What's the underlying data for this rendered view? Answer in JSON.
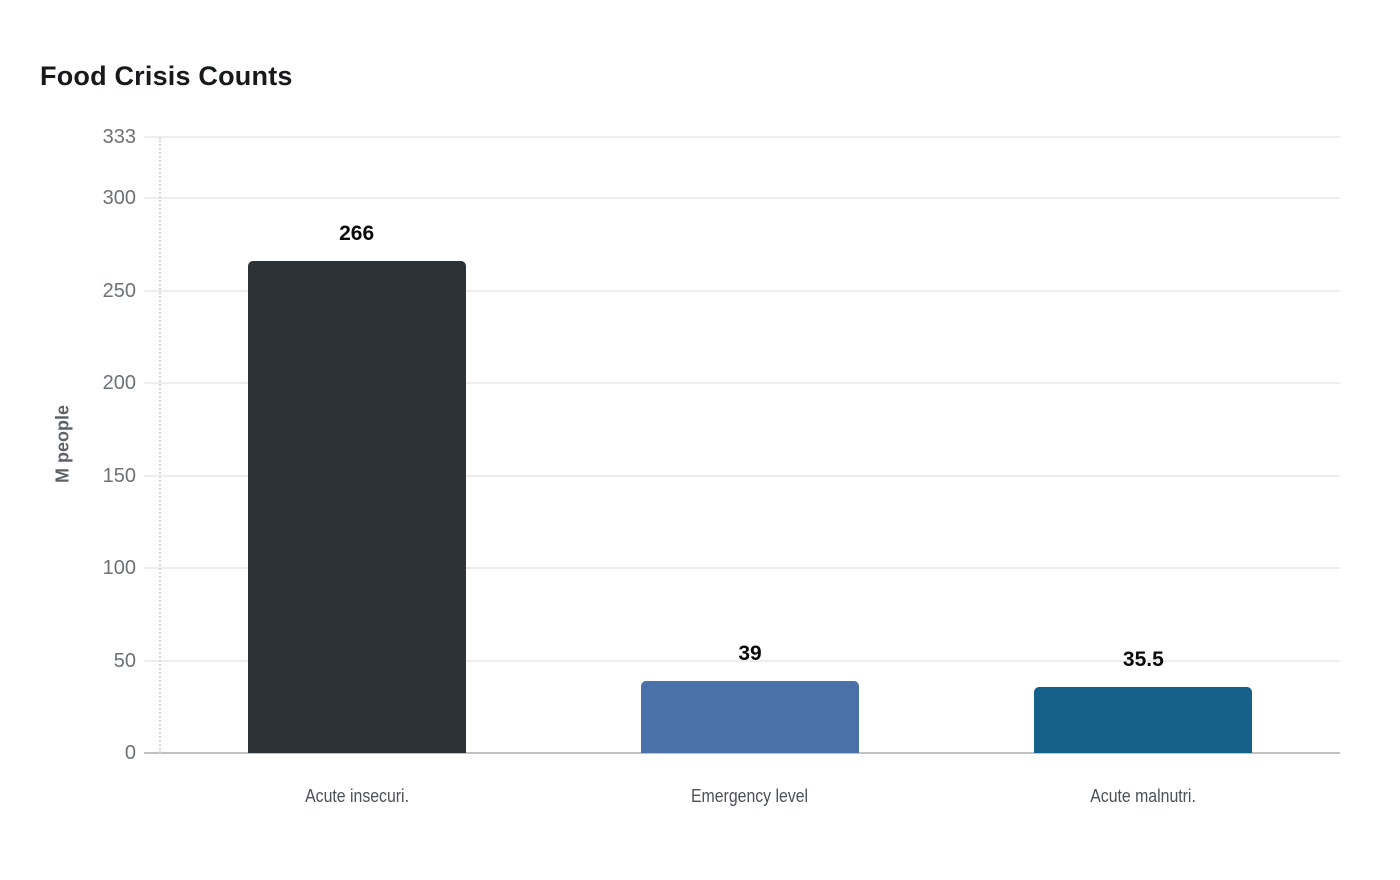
{
  "page": {
    "background": "#ffffff"
  },
  "chart_data": {
    "type": "bar",
    "title": "Food Crisis Counts",
    "ylabel": "M people",
    "xlabel": "",
    "categories": [
      "Acute insecuri.",
      "Emergency level",
      "Acute malnutri."
    ],
    "values": [
      266,
      39,
      35.5
    ],
    "value_labels": [
      "266",
      "39",
      "35.5"
    ],
    "bar_colors": [
      "#2b3338",
      "#4a71a8",
      "#16618a"
    ],
    "yticks": [
      0,
      50,
      100,
      150,
      200,
      250,
      300,
      333
    ],
    "ytick_labels": [
      "0",
      "50",
      "100",
      "150",
      "200",
      "250",
      "300",
      "333"
    ],
    "ylim": [
      0,
      333
    ],
    "grid": true,
    "legend_position": "none",
    "colors": {
      "title": "#17191c",
      "tick_labels": "#6c7176",
      "category_labels": "#4b5157",
      "value_labels": "#0a0a0a",
      "axis_title": "#5e6368",
      "gridline": "#ededed",
      "baseline": "#c2c2c2",
      "axis_line": "#d8d8d8"
    }
  }
}
